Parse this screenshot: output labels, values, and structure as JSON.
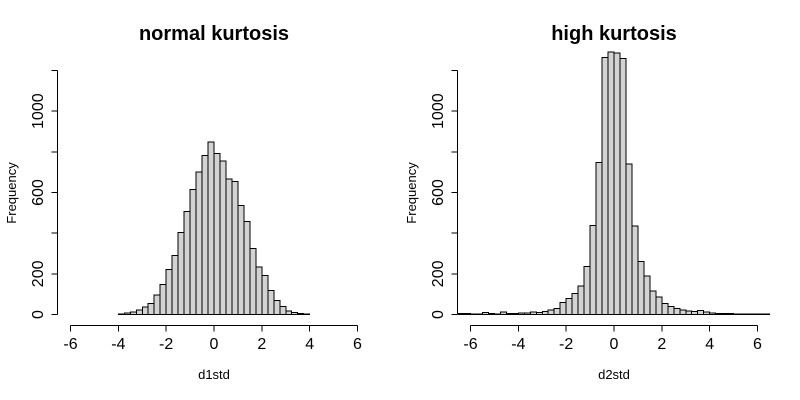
{
  "figure": {
    "background": "#ffffff",
    "bar_fill": "#d3d3d3",
    "bar_stroke": "#000000",
    "text_color": "#000000"
  },
  "chart_data": [
    {
      "type": "bar",
      "subtype": "histogram",
      "title": "normal kurtosis",
      "xlabel": "d1std",
      "ylabel": "Frequency",
      "grid": false,
      "legend": "none",
      "xlim": [
        -6,
        6
      ],
      "ylim": [
        0,
        1200
      ],
      "xticks": [
        -6,
        -4,
        -2,
        0,
        2,
        4,
        6
      ],
      "yticks": [
        0,
        200,
        400,
        600,
        800,
        1000,
        1200
      ],
      "ytick_labels": [
        0,
        200,
        600,
        1000
      ],
      "bin_start": -4,
      "bin_width": 0.25,
      "counts": [
        3,
        8,
        13,
        21,
        38,
        54,
        96,
        147,
        221,
        289,
        403,
        507,
        614,
        700,
        782,
        848,
        792,
        754,
        667,
        655,
        535,
        457,
        325,
        234,
        193,
        119,
        69,
        40,
        18,
        10,
        5,
        2
      ]
    },
    {
      "type": "bar",
      "subtype": "histogram",
      "title": "high kurtosis",
      "xlabel": "d2std",
      "ylabel": "Frequency",
      "grid": false,
      "legend": "none",
      "xlim": [
        -6,
        6
      ],
      "ylim": [
        0,
        1200
      ],
      "xticks": [
        -6,
        -4,
        -2,
        0,
        2,
        4,
        6
      ],
      "yticks": [
        0,
        200,
        400,
        600,
        800,
        1000,
        1200
      ],
      "ytick_labels": [
        0,
        200,
        600,
        1000
      ],
      "bin_start": -6.5,
      "bin_width": 0.25,
      "counts": [
        6,
        4,
        2,
        3,
        10,
        5,
        3,
        12,
        5,
        4,
        7,
        8,
        13,
        11,
        16,
        22,
        30,
        59,
        79,
        104,
        140,
        236,
        437,
        747,
        1265,
        1290,
        1285,
        1260,
        740,
        435,
        260,
        190,
        115,
        85,
        55,
        40,
        30,
        22,
        18,
        15,
        20,
        12,
        8,
        6,
        5,
        4,
        3,
        3,
        2,
        2,
        3,
        2
      ]
    }
  ]
}
